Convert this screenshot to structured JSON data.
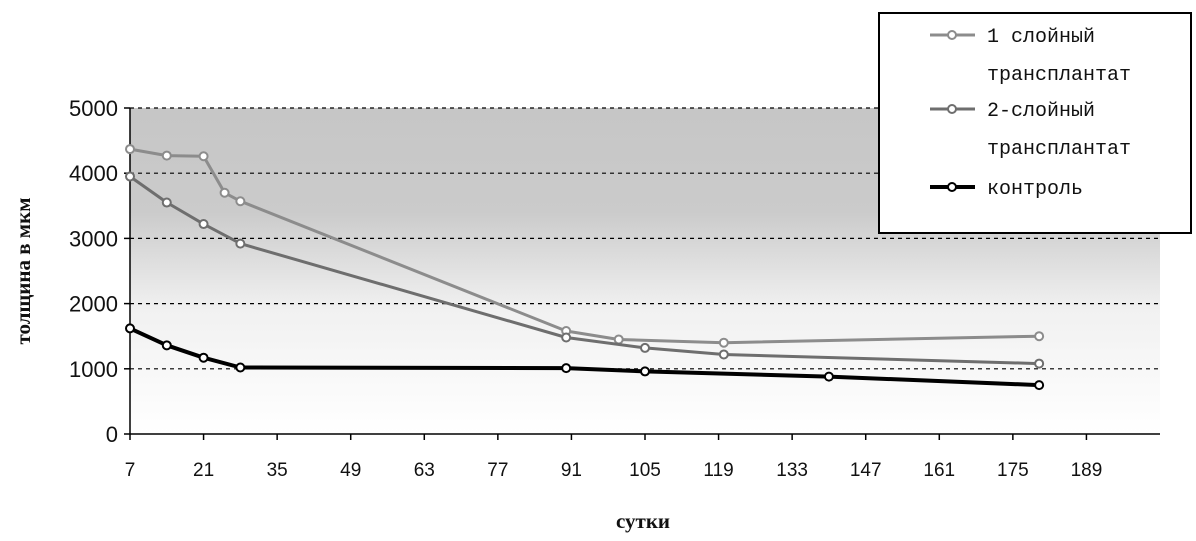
{
  "chart_data": {
    "type": "line",
    "title": "",
    "xlabel": "сутки",
    "ylabel": "толщина  в мкм",
    "xlim": [
      7,
      203
    ],
    "ylim": [
      0,
      5000
    ],
    "x_ticks": [
      "7",
      "21",
      "35",
      "49",
      "63",
      "77",
      "91",
      "105",
      "119",
      "133",
      "147",
      "161",
      "175",
      "189"
    ],
    "y_ticks": [
      "0",
      "1000",
      "2000",
      "3000",
      "4000",
      "5000"
    ],
    "grid": "horizontal dashed",
    "legend_position": "top-right",
    "series": [
      {
        "name": "1 слойный трансплантат",
        "color": "#8c8c8c",
        "points": [
          [
            7,
            4370
          ],
          [
            14,
            4270
          ],
          [
            21,
            4260
          ],
          [
            25,
            3700
          ],
          [
            28,
            3570
          ],
          [
            90,
            1580
          ],
          [
            100,
            1450
          ],
          [
            120,
            1400
          ],
          [
            180,
            1500
          ]
        ]
      },
      {
        "name": "2-слойный трансплантат",
        "color": "#6e6e6e",
        "points": [
          [
            7,
            3950
          ],
          [
            14,
            3550
          ],
          [
            21,
            3220
          ],
          [
            28,
            2920
          ],
          [
            90,
            1480
          ],
          [
            105,
            1320
          ],
          [
            120,
            1220
          ],
          [
            180,
            1080
          ]
        ]
      },
      {
        "name": "контроль",
        "color": "#000000",
        "points": [
          [
            7,
            1620
          ],
          [
            14,
            1360
          ],
          [
            21,
            1170
          ],
          [
            28,
            1020
          ],
          [
            90,
            1010
          ],
          [
            105,
            960
          ],
          [
            140,
            880
          ],
          [
            180,
            750
          ]
        ]
      }
    ],
    "legend": [
      {
        "line1": "1 слойный",
        "line2": "трансплантат"
      },
      {
        "line1": "2-слойный",
        "line2": "трансплантат"
      },
      {
        "line1": "контроль",
        "line2": ""
      }
    ]
  }
}
